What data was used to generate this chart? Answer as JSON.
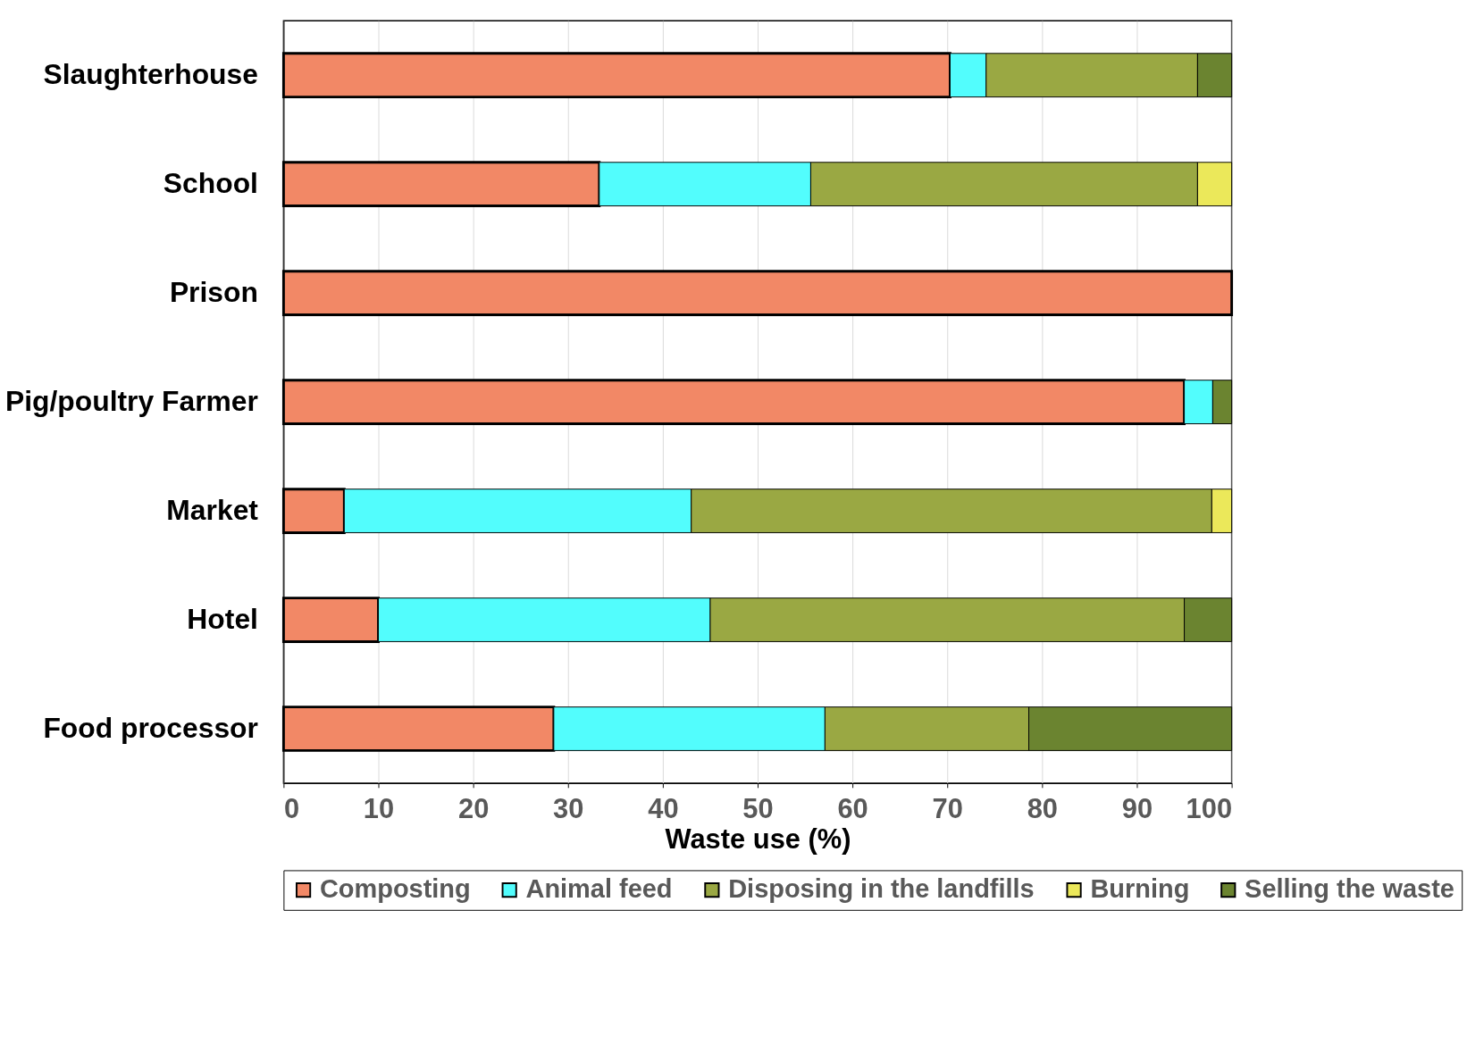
{
  "chart_data": {
    "type": "bar",
    "orientation": "horizontal",
    "stacked": true,
    "xlabel": "Waste use (%)",
    "categories": [
      "Slaughterhouse",
      "School",
      "Prison",
      "Pig/poultry Farmer",
      "Market",
      "Hotel",
      "Food processor"
    ],
    "series": [
      {
        "name": "Composting",
        "color": "#f28866",
        "values": [
          70.3,
          33.3,
          100,
          95.0,
          6.4,
          10,
          28.5
        ]
      },
      {
        "name": "Animal feed",
        "color": "#52fdfd",
        "values": [
          3.8,
          22.3,
          null,
          3.0,
          36.6,
          35,
          28.6
        ]
      },
      {
        "name": "Disposing in the landfills",
        "color": "#9aa843",
        "values": [
          22.3,
          40.8,
          null,
          null,
          54.9,
          50,
          21.5
        ]
      },
      {
        "name": "Burning",
        "color": "#ebe85a",
        "values": [
          null,
          3.6,
          null,
          null,
          2.1,
          null,
          null
        ]
      },
      {
        "name": "Selling the waste",
        "color": "#6b8430",
        "values": [
          3.6,
          null,
          null,
          2.0,
          null,
          5,
          21.4
        ]
      }
    ],
    "xlim": [
      0,
      100
    ],
    "xticks": [
      0,
      10,
      20,
      30,
      40,
      50,
      60,
      70,
      80,
      90,
      100
    ],
    "grid": "x",
    "legend": "bottom"
  }
}
